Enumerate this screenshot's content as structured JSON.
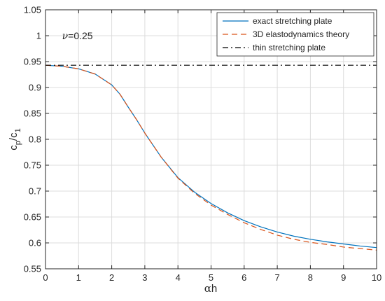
{
  "chart_data": {
    "type": "line",
    "xlabel_symbol": "α",
    "xlabel_rest": "h",
    "ylabel_c": "c",
    "ylabel_p": "p",
    "ylabel_slash": "/c",
    "ylabel_1": "1",
    "xlim": [
      0,
      10
    ],
    "ylim": [
      0.55,
      1.05
    ],
    "xticks": [
      0,
      1,
      2,
      3,
      4,
      5,
      6,
      7,
      8,
      9,
      10
    ],
    "yticks": [
      0.55,
      0.6,
      0.65,
      0.7,
      0.75,
      0.8,
      0.85,
      0.9,
      0.95,
      1,
      1.05
    ],
    "ytick_labels": [
      "0.55",
      "0.6",
      "0.65",
      "0.7",
      "0.75",
      "0.8",
      "0.85",
      "0.9",
      "0.95",
      "1",
      "1.05"
    ],
    "grid": true,
    "legend_position": "top-right",
    "annotation": {
      "symbol": "ν",
      "text": "=0.25",
      "x": 0.5,
      "y": 1.0
    },
    "x": [
      0,
      0.5,
      1,
      1.5,
      2,
      2.25,
      2.5,
      2.75,
      3,
      3.5,
      4,
      4.5,
      5,
      5.5,
      6,
      6.5,
      7,
      7.5,
      8,
      8.5,
      9,
      9.5,
      10
    ],
    "series": [
      {
        "name": "exact stretching plate",
        "color": "#0072BD",
        "dash": "solid",
        "values": [
          0.943,
          0.941,
          0.936,
          0.926,
          0.905,
          0.887,
          0.862,
          0.838,
          0.812,
          0.765,
          0.726,
          0.698,
          0.676,
          0.658,
          0.643,
          0.631,
          0.621,
          0.613,
          0.607,
          0.602,
          0.598,
          0.594,
          0.591
        ]
      },
      {
        "name": "3D elastodynamics theory",
        "color": "#D95319",
        "dash": "dashed",
        "values": [
          0.943,
          0.941,
          0.936,
          0.926,
          0.905,
          0.887,
          0.862,
          0.838,
          0.812,
          0.765,
          0.725,
          0.696,
          0.673,
          0.655,
          0.639,
          0.626,
          0.615,
          0.607,
          0.601,
          0.597,
          0.592,
          0.589,
          0.586
        ]
      },
      {
        "name": "thin stretching plate",
        "color": "#000000",
        "dash": "dashdot",
        "values": [
          0.943,
          0.943,
          0.943,
          0.943,
          0.943,
          0.943,
          0.943,
          0.943,
          0.943,
          0.943,
          0.943,
          0.943,
          0.943,
          0.943,
          0.943,
          0.943,
          0.943,
          0.943,
          0.943,
          0.943,
          0.943,
          0.943,
          0.943
        ]
      }
    ]
  }
}
